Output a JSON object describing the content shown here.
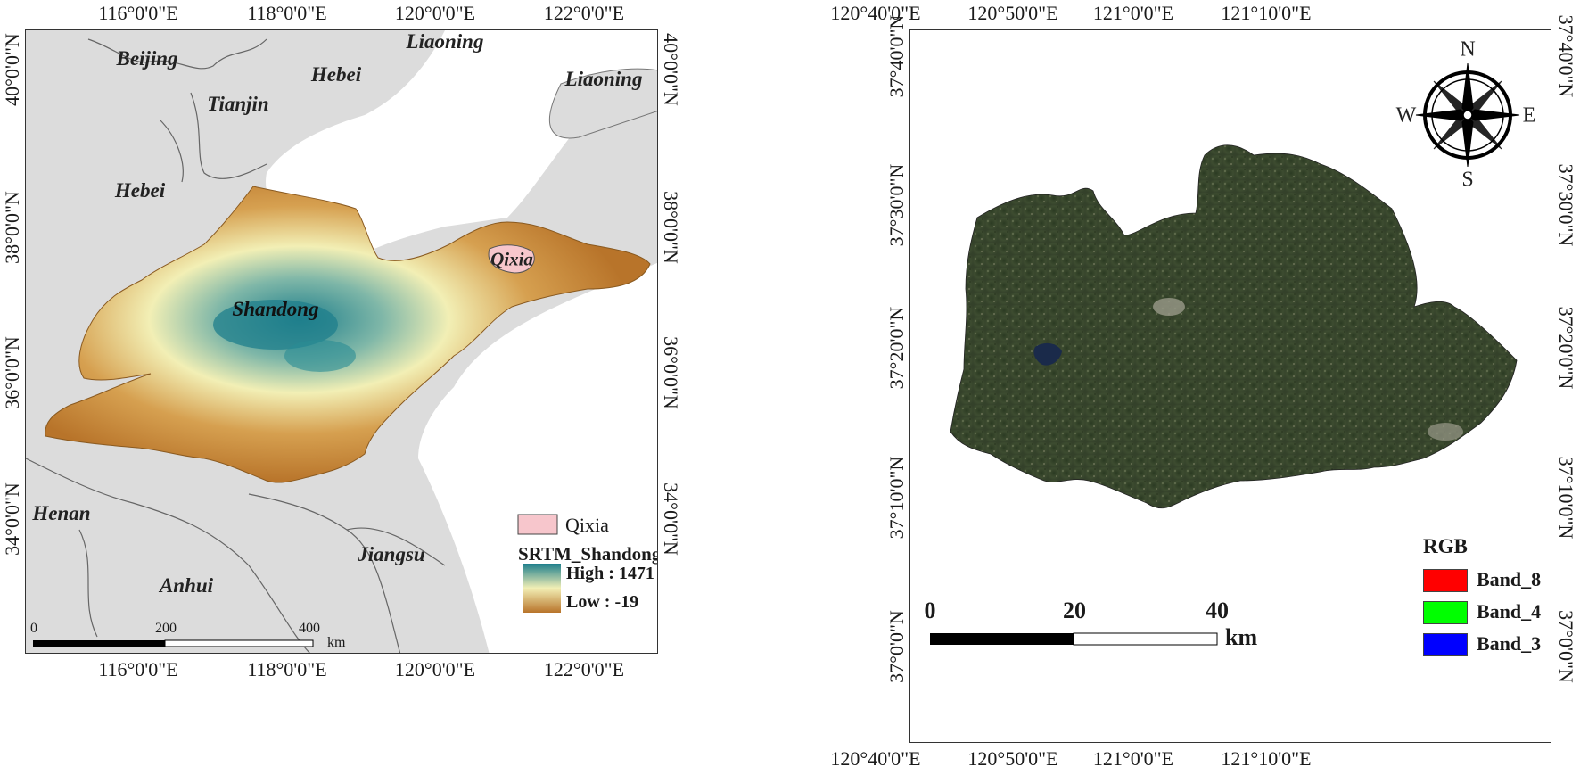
{
  "left_map": {
    "lon_ticks": [
      "116°0'0\"E",
      "118°0'0\"E",
      "120°0'0\"E",
      "122°0'0\"E"
    ],
    "lat_ticks": [
      "40°0'0\"N",
      "38°0'0\"N",
      "36°0'0\"N",
      "34°0'0\"N"
    ],
    "places": {
      "beijing": "Beijing",
      "tianjin": "Tianjin",
      "hebei_north": "Hebei",
      "hebei_west": "Hebei",
      "liaoning_top": "Liaoning",
      "liaoning_right": "Liaoning",
      "shandong": "Shandong",
      "qixia": "Qixia",
      "henan": "Henan",
      "jiangsu": "Jiangsu",
      "anhui": "Anhui"
    },
    "legend": {
      "qixia_label": "Qixia",
      "raster_title": "SRTM_Shandong",
      "high_label": "High : 1471",
      "low_label": "Low : -19",
      "qixia_color": "#f7c6cc",
      "ramp_colors": [
        "#1f7f8c",
        "#f2efb5",
        "#b8742a"
      ]
    },
    "scale": {
      "ticks": [
        "0",
        "200",
        "400"
      ],
      "unit": "km"
    },
    "colors": {
      "land": "#dcdcdc",
      "sea": "#ffffff",
      "dem_low": "#b8742a",
      "dem_mid": "#f2efb5",
      "dem_high": "#1f7f8c"
    }
  },
  "right_map": {
    "lon_ticks": [
      "120°40'0\"E",
      "120°50'0\"E",
      "121°0'0\"E",
      "121°10'0\"E"
    ],
    "lat_ticks": [
      "37°40'0\"N",
      "37°30'0\"N",
      "37°20'0\"N",
      "37°10'0\"N",
      "37°0'0\"N"
    ],
    "compass": {
      "n": "N",
      "s": "S",
      "e": "E",
      "w": "W"
    },
    "legend": {
      "title": "RGB",
      "bands": [
        {
          "label": "Band_8",
          "color": "#ff0000"
        },
        {
          "label": "Band_4",
          "color": "#00ff00"
        },
        {
          "label": "Band_3",
          "color": "#0000ff"
        }
      ]
    },
    "scale": {
      "ticks": [
        "0",
        "20",
        "40"
      ],
      "unit": "km"
    },
    "colors": {
      "imagery_dark": "#2b3a22",
      "imagery_mid": "#3d4c30",
      "imagery_light": "#6b7655"
    }
  }
}
